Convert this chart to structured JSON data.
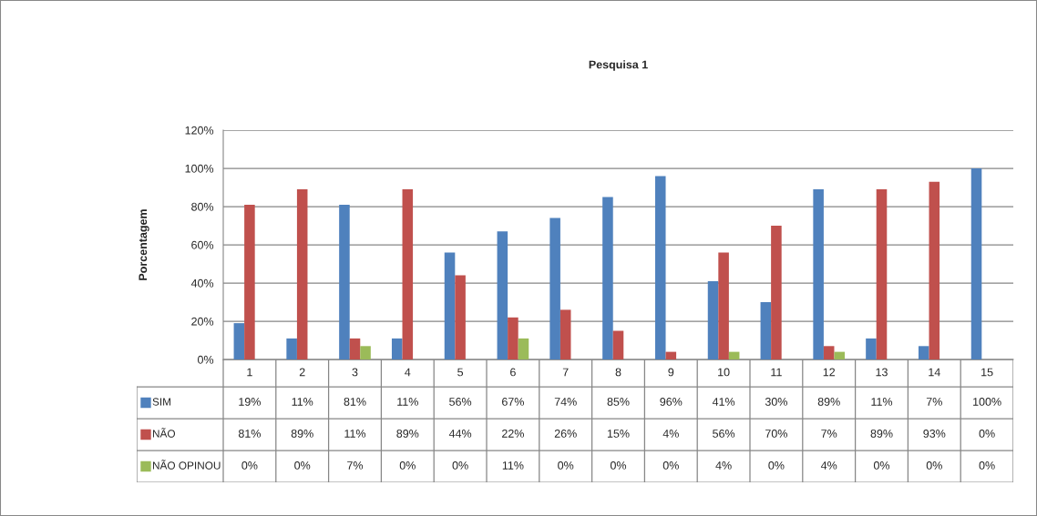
{
  "chart_data": {
    "type": "bar",
    "title": "Pesquisa 1",
    "ylabel": "Porcentagem",
    "categories": [
      "1",
      "2",
      "3",
      "4",
      "5",
      "6",
      "7",
      "8",
      "9",
      "10",
      "11",
      "12",
      "13",
      "14",
      "15"
    ],
    "series": [
      {
        "name": "SIM",
        "color": "#4f81bd",
        "values": [
          19,
          11,
          81,
          11,
          56,
          67,
          74,
          85,
          96,
          41,
          30,
          89,
          11,
          7,
          100
        ],
        "value_labels": [
          "19%",
          "11%",
          "81%",
          "11%",
          "56%",
          "67%",
          "74%",
          "85%",
          "96%",
          "41%",
          "30%",
          "89%",
          "11%",
          "7%",
          "100%"
        ]
      },
      {
        "name": "NÃO",
        "color": "#c0504d",
        "values": [
          81,
          89,
          11,
          89,
          44,
          22,
          26,
          15,
          4,
          56,
          70,
          7,
          89,
          93,
          0
        ],
        "value_labels": [
          "81%",
          "89%",
          "11%",
          "89%",
          "44%",
          "22%",
          "26%",
          "15%",
          "4%",
          "56%",
          "70%",
          "7%",
          "89%",
          "93%",
          "0%"
        ]
      },
      {
        "name": "NÃO OPINOU",
        "color": "#9bbb59",
        "values": [
          0,
          0,
          7,
          0,
          0,
          11,
          0,
          0,
          0,
          4,
          0,
          4,
          0,
          0,
          0
        ],
        "value_labels": [
          "0%",
          "0%",
          "7%",
          "0%",
          "0%",
          "11%",
          "0%",
          "0%",
          "0%",
          "4%",
          "0%",
          "4%",
          "0%",
          "0%",
          "0%"
        ]
      }
    ],
    "ylim": [
      0,
      120
    ],
    "yticks": [
      {
        "value": 0,
        "label": "0%"
      },
      {
        "value": 20,
        "label": "20%"
      },
      {
        "value": 40,
        "label": "40%"
      },
      {
        "value": 60,
        "label": "60%"
      },
      {
        "value": 80,
        "label": "80%"
      },
      {
        "value": 100,
        "label": "100%"
      },
      {
        "value": 120,
        "label": "120%"
      }
    ],
    "grid": "y",
    "legend": "bottom"
  }
}
